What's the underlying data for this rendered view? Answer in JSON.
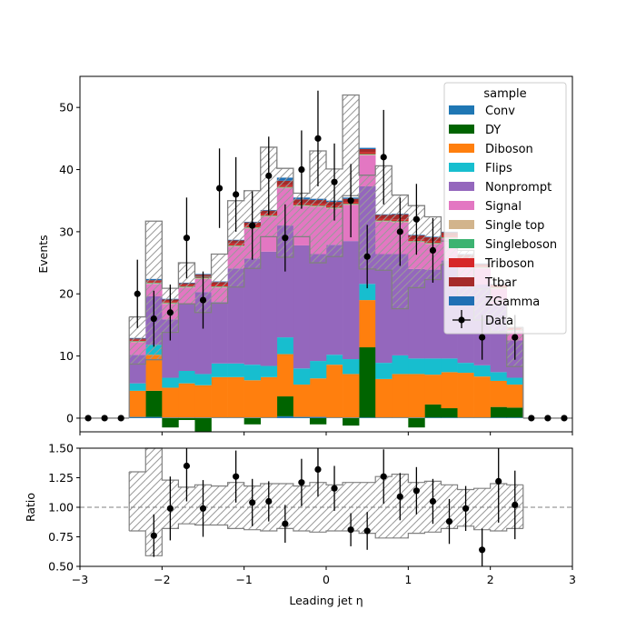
{
  "chart_data": [
    {
      "type": "bar",
      "stacked": true,
      "xlabel": "Leading jet  η",
      "ylabel": "Events",
      "xlim": [
        -3,
        3
      ],
      "ylim": [
        -2.2,
        55
      ],
      "yticks": [
        0,
        10,
        20,
        30,
        40,
        50
      ],
      "bin_edges": [
        -2.4,
        -2.2,
        -2.0,
        -1.8,
        -1.6,
        -1.4,
        -1.2,
        -1.0,
        -0.8,
        -0.6,
        -0.4,
        -0.2,
        0.0,
        0.2,
        0.4,
        0.6,
        0.8,
        1.0,
        1.2,
        1.4,
        1.6,
        1.8,
        2.0,
        2.2,
        2.4
      ],
      "legend_title": "sample",
      "legend_position": "upper right",
      "series": [
        {
          "name": "Conv",
          "color": "#1f77b4",
          "values": [
            0.2,
            0.2,
            0.1,
            0.1,
            0.1,
            0.1,
            0.1,
            0.1,
            0.1,
            0.3,
            0.2,
            0.2,
            0.1,
            0.1,
            0.1,
            0.1,
            0.1,
            0.1,
            0.1,
            0.1,
            0.1,
            0.1,
            0.1,
            0.1
          ]
        },
        {
          "name": "DY",
          "color": "#006400",
          "values": [
            0,
            4.2,
            -1.5,
            -0.3,
            -2.2,
            0,
            0,
            -1,
            0,
            3.2,
            0,
            -1,
            0,
            -1.2,
            11.3,
            0,
            0,
            -1.5,
            2.1,
            1.5,
            0,
            0,
            1.7,
            1.6
          ]
        },
        {
          "name": "Diboson",
          "color": "#ff7f0e",
          "values": [
            4.2,
            5.8,
            4.8,
            5.5,
            5.2,
            6.5,
            6.5,
            6.0,
            6.5,
            6.8,
            5.2,
            6.2,
            8.5,
            7.0,
            7.6,
            6.2,
            7.0,
            7.0,
            4.8,
            5.8,
            7.2,
            6.6,
            4.2,
            3.7
          ]
        },
        {
          "name": "Flips",
          "color": "#17becf",
          "values": [
            1.2,
            1.6,
            1.6,
            2.0,
            1.8,
            2.2,
            2.2,
            2.5,
            1.8,
            2.7,
            2.6,
            2.8,
            1.6,
            2.4,
            2.6,
            2.6,
            3.0,
            2.5,
            2.6,
            2.2,
            1.6,
            1.8,
            1.4,
            1.1
          ]
        },
        {
          "name": "Nonprompt",
          "color": "#9467bd",
          "values": [
            4.6,
            7.8,
            9.4,
            10.8,
            13.2,
            9.9,
            15.3,
            17.1,
            18.4,
            18.0,
            19.8,
            17.2,
            17.7,
            19.0,
            15.7,
            17.5,
            16.3,
            14.4,
            14.3,
            15.8,
            13.8,
            13.0,
            11.0,
            6.0
          ]
        },
        {
          "name": "Signal",
          "color": "#e377c2",
          "values": [
            2.0,
            2.0,
            2.5,
            2.6,
            2.1,
            2.3,
            3.5,
            4.8,
            5.6,
            6.0,
            6.3,
            7.6,
            5.8,
            5.8,
            5.0,
            5.2,
            5.1,
            4.3,
            4.1,
            3.5,
            2.8,
            2.6,
            2.4,
            1.5
          ]
        },
        {
          "name": "Single top",
          "color": "#d2b48c",
          "values": [
            0.1,
            0.1,
            0.1,
            0.1,
            0.1,
            0.1,
            0.1,
            0.1,
            0.1,
            0.1,
            0.1,
            0.1,
            0.1,
            0.1,
            0.1,
            0.1,
            0.1,
            0.1,
            0.1,
            0.1,
            0.1,
            0.1,
            0.1,
            0.1
          ]
        },
        {
          "name": "Singleboson",
          "color": "#3cb371",
          "values": [
            0.1,
            0.1,
            0.1,
            0.1,
            0.1,
            0.1,
            0.1,
            0.1,
            0.1,
            0.1,
            0.1,
            0.1,
            0.1,
            0.1,
            0.1,
            0.1,
            0.1,
            0.1,
            0.1,
            0.1,
            0.1,
            0.1,
            0.1,
            0.1
          ]
        },
        {
          "name": "Triboson",
          "color": "#d62728",
          "values": [
            0.2,
            0.2,
            0.2,
            0.2,
            0.2,
            0.3,
            0.3,
            0.3,
            0.3,
            0.3,
            0.3,
            0.3,
            0.3,
            0.3,
            0.3,
            0.3,
            0.3,
            0.3,
            0.3,
            0.3,
            0.2,
            0.2,
            0.2,
            0.2
          ]
        },
        {
          "name": "Ttbar",
          "color": "#a52a2a",
          "values": [
            0.2,
            0.2,
            0.3,
            0.3,
            0.3,
            0.4,
            0.5,
            0.5,
            0.5,
            0.7,
            0.6,
            0.6,
            0.6,
            0.5,
            0.5,
            0.6,
            0.8,
            0.6,
            0.6,
            0.5,
            0.4,
            0.3,
            0.3,
            0.2
          ]
        },
        {
          "name": "ZGamma",
          "color": "#1f6fb4",
          "values": [
            0.1,
            0.2,
            0.1,
            0.1,
            0.1,
            0.1,
            0.1,
            0.1,
            0.1,
            0.5,
            0.3,
            0.2,
            0.2,
            0.2,
            0.2,
            0.1,
            0.1,
            0.1,
            0.1,
            0.1,
            0.1,
            0.1,
            0.1,
            0.1
          ]
        }
      ],
      "uncertainty_band": {
        "upper": [
          16.3,
          31.7,
          20.9,
          25.0,
          22.8,
          26.4,
          35.0,
          36.6,
          43.6,
          40.2,
          36.2,
          43.0,
          40.1,
          52.0,
          39.1,
          40.6,
          35.9,
          34.2,
          32.4,
          28.5,
          27.0,
          20.8,
          18.9,
          14.6
        ],
        "lower": [
          8.7,
          9.4,
          13.8,
          18.4,
          17.0,
          18.5,
          21.1,
          24.1,
          29.2,
          25.9,
          29.2,
          25.0,
          26.0,
          35.8,
          24.0,
          23.8,
          17.6,
          21.0,
          22.3,
          24.7,
          19.4,
          15.8,
          13.9,
          8.3
        ]
      },
      "data": {
        "name": "Data",
        "x": [
          -2.9,
          -2.7,
          -2.5,
          -2.3,
          -2.1,
          -1.9,
          -1.7,
          -1.5,
          -1.3,
          -1.1,
          -0.9,
          -0.7,
          -0.5,
          -0.3,
          -0.1,
          0.1,
          0.3,
          0.5,
          0.7,
          0.9,
          1.1,
          1.3,
          1.5,
          1.7,
          1.9,
          2.1,
          2.3,
          2.5,
          2.7,
          2.9
        ],
        "y": [
          0,
          0,
          0,
          20,
          16,
          17,
          29,
          19,
          37,
          36,
          31,
          39,
          29,
          40,
          45,
          38,
          35,
          26,
          42,
          30,
          32,
          27,
          null,
          null,
          13,
          null,
          13,
          0,
          0,
          0
        ],
        "err": [
          0,
          0,
          0,
          5.5,
          4.5,
          4.5,
          6.5,
          4.6,
          6.4,
          6.0,
          5.5,
          6.3,
          5.4,
          6.3,
          7.7,
          6.2,
          5.9,
          5.1,
          7.6,
          5.5,
          5.7,
          5.2,
          0,
          0,
          3.6,
          0,
          3.6,
          0,
          0,
          0
        ]
      }
    },
    {
      "type": "scatter",
      "xlabel": "Leading jet  η",
      "ylabel": "Ratio",
      "xlim": [
        -3,
        3
      ],
      "ylim": [
        0.5,
        1.5
      ],
      "yticks": [
        0.5,
        0.75,
        1.0,
        1.25,
        1.5
      ],
      "ytick_labels": [
        "0.50",
        "0.75",
        "1.00",
        "1.25",
        "1.50"
      ],
      "xticks": [
        -3,
        -2,
        -1,
        0,
        1,
        2,
        3
      ],
      "reference_line": 1.0,
      "ratio_band": {
        "upper": [
          1.3,
          1.52,
          1.23,
          1.17,
          1.19,
          1.18,
          1.21,
          1.18,
          1.2,
          1.2,
          1.18,
          1.21,
          1.19,
          1.21,
          1.21,
          1.26,
          1.28,
          1.21,
          1.22,
          1.19,
          1.15,
          1.16,
          1.2,
          1.19
        ],
        "lower": [
          0.8,
          0.59,
          0.82,
          0.86,
          0.85,
          0.85,
          0.82,
          0.81,
          0.8,
          0.82,
          0.8,
          0.79,
          0.8,
          0.8,
          0.78,
          0.74,
          0.74,
          0.78,
          0.79,
          0.82,
          0.84,
          0.81,
          0.8,
          0.82
        ]
      },
      "points": {
        "x": [
          -2.1,
          -1.9,
          -1.7,
          -1.5,
          -1.1,
          -0.9,
          -0.7,
          -0.5,
          -0.3,
          -0.1,
          0.1,
          0.3,
          0.5,
          0.7,
          0.9,
          1.1,
          1.3,
          1.5,
          1.7,
          1.9,
          2.1,
          2.3
        ],
        "y": [
          0.76,
          0.99,
          1.35,
          0.99,
          1.26,
          1.04,
          1.05,
          0.86,
          1.21,
          1.32,
          1.16,
          0.81,
          0.8,
          1.26,
          1.09,
          1.14,
          1.05,
          0.88,
          0.99,
          0.64,
          1.22,
          1.02
        ],
        "err": [
          0.18,
          0.27,
          0.3,
          0.24,
          0.22,
          0.2,
          0.17,
          0.16,
          0.2,
          0.23,
          0.19,
          0.14,
          0.16,
          0.23,
          0.2,
          0.2,
          0.19,
          0.19,
          0.19,
          0.18,
          0.35,
          0.29
        ]
      }
    }
  ]
}
